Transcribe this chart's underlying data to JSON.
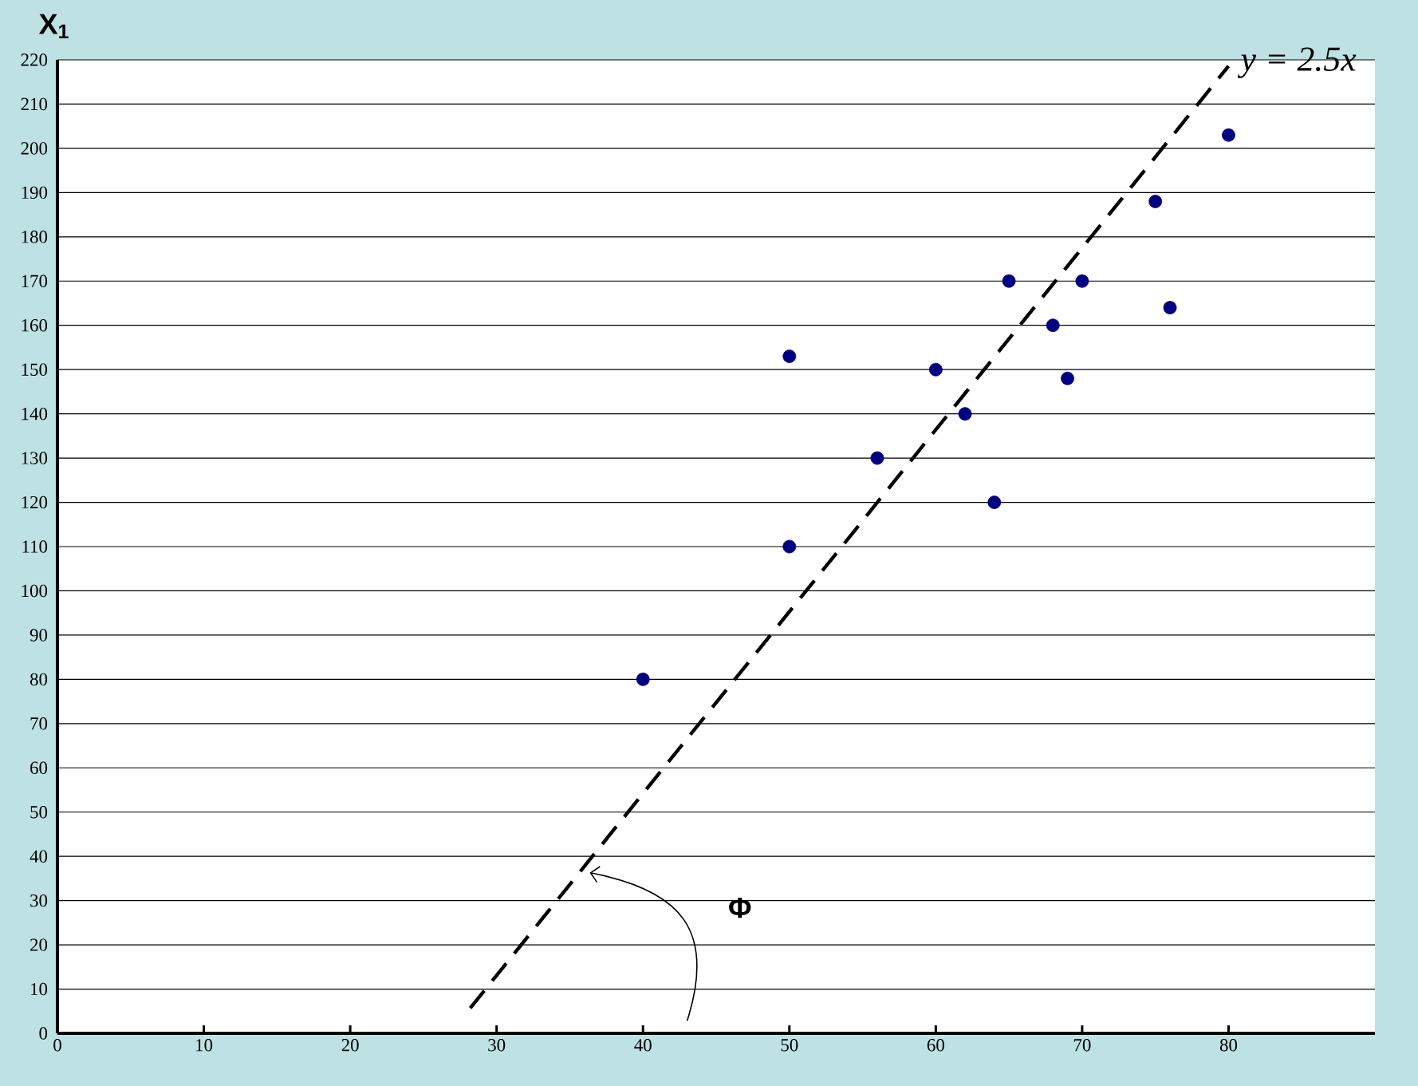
{
  "chart_data": {
    "type": "scatter",
    "ylabel": "X$_{1}$",
    "xlim": [
      0,
      90
    ],
    "ylim": [
      0,
      220
    ],
    "xticks": [
      0,
      10,
      20,
      30,
      40,
      50,
      60,
      70,
      80
    ],
    "yticks": [
      0,
      10,
      20,
      30,
      40,
      50,
      60,
      70,
      80,
      90,
      100,
      110,
      120,
      130,
      140,
      150,
      160,
      170,
      180,
      190,
      200,
      210,
      220
    ],
    "grid": "y",
    "marker": "circle",
    "series": [
      {
        "color": "#000080",
        "x": [
          40,
          50,
          50,
          56,
          60,
          62,
          64,
          65,
          68,
          69,
          70,
          75,
          76,
          80
        ],
        "values": [
          80,
          153,
          110,
          130,
          150,
          140,
          120,
          170,
          160,
          148,
          170,
          188,
          164,
          203
        ]
      },
      {
        "type": "line",
        "name": "y = 2.5x",
        "color": "#000000",
        "line_style": "dashed",
        "marker": "none",
        "x": [
          28.2,
          80
        ],
        "values": [
          5.7,
          218.6
        ]
      }
    ],
    "annotations": [
      "Φ"
    ]
  }
}
